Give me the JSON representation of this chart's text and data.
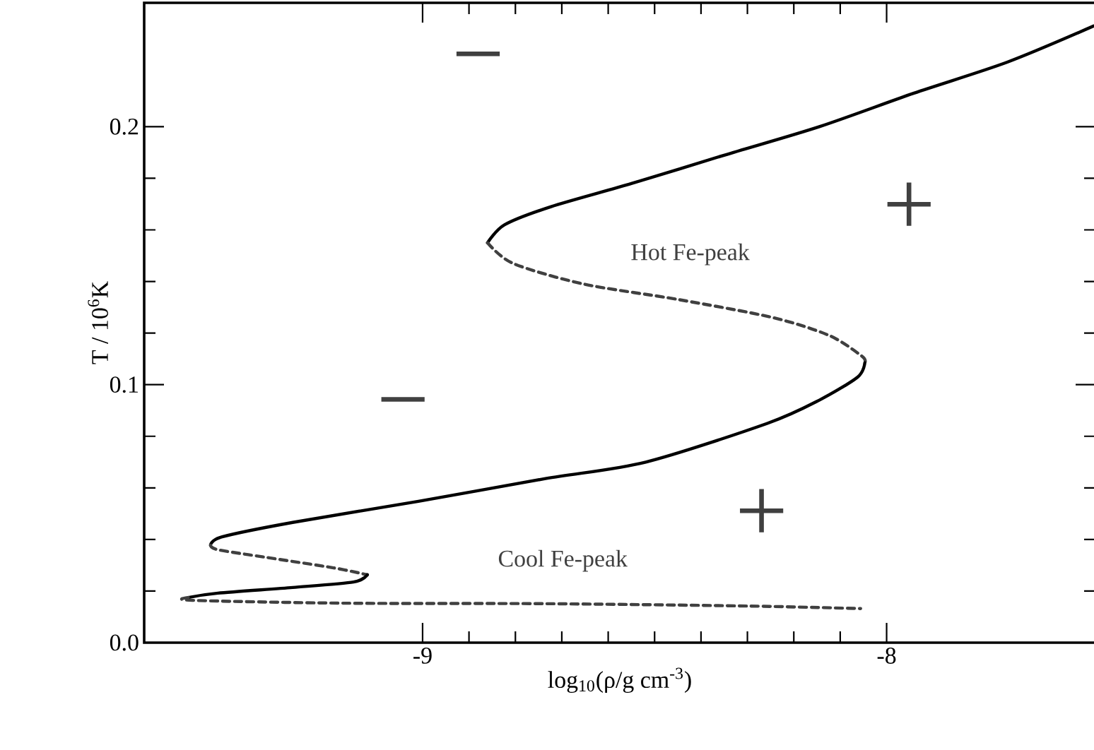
{
  "chart_data": {
    "type": "line",
    "xlabel": "log$_{10}$(ρ/g cm$^{-3}$)",
    "ylabel": "T / 10$^{6}$K",
    "xlim": [
      -9.6,
      -7.55
    ],
    "ylim": [
      0,
      0.248
    ],
    "xticks": [
      -9,
      -8
    ],
    "yticks": [
      {
        "value": 0,
        "label": "0.0"
      },
      {
        "value": 0.1,
        "label": "0.1"
      },
      {
        "value": 0.2,
        "label": "0.2"
      }
    ],
    "series": [
      {
        "color": "#000000",
        "line_style": "solid",
        "x": [
          -7.554,
          -7.74,
          -7.941,
          -8.145,
          -8.349,
          -8.549,
          -8.723,
          -8.823,
          -8.86
        ],
        "values": [
          0.239,
          0.225,
          0.213,
          0.2,
          0.189,
          0.178,
          0.169,
          0.162,
          0.155
        ]
      },
      {
        "color": "#404040",
        "line_style": "dashed",
        "x": [
          -8.86,
          -8.805,
          -8.653,
          -8.449,
          -8.245,
          -8.123,
          -8.053,
          -8.047
        ],
        "values": [
          0.155,
          0.147,
          0.139,
          0.133,
          0.126,
          0.119,
          0.111,
          0.1085
        ]
      },
      {
        "color": "#000000",
        "line_style": "solid",
        "x": [
          -8.047,
          -8.062,
          -8.145,
          -8.257,
          -8.519,
          -8.735,
          -9.009,
          -9.28,
          -9.432,
          -9.457
        ],
        "values": [
          0.1085,
          0.103,
          0.094,
          0.085,
          0.07,
          0.0636,
          0.0548,
          0.0466,
          0.041,
          0.0378
        ]
      },
      {
        "color": "#404040",
        "line_style": "dashed",
        "x": [
          -9.457,
          -9.441,
          -9.335,
          -9.192,
          -9.119
        ],
        "values": [
          0.0378,
          0.036,
          0.033,
          0.029,
          0.0263
        ]
      },
      {
        "color": "#000000",
        "line_style": "solid",
        "x": [
          -9.119,
          -9.149,
          -9.28,
          -9.441,
          -9.505
        ],
        "values": [
          0.0263,
          0.0235,
          0.0214,
          0.0192,
          0.0175
        ]
      },
      {
        "color": "#404040",
        "line_style": "dashed",
        "x": [
          -9.505,
          -9.496,
          -9.17,
          -8.735,
          -8.3,
          -8.056
        ],
        "values": [
          0.0175,
          0.0164,
          0.0153,
          0.0151,
          0.0142,
          0.0132
        ]
      }
    ],
    "annotations": [
      "−",
      "−",
      "+",
      "+",
      "Hot Fe-peak",
      "Cool Fe-peak"
    ]
  }
}
